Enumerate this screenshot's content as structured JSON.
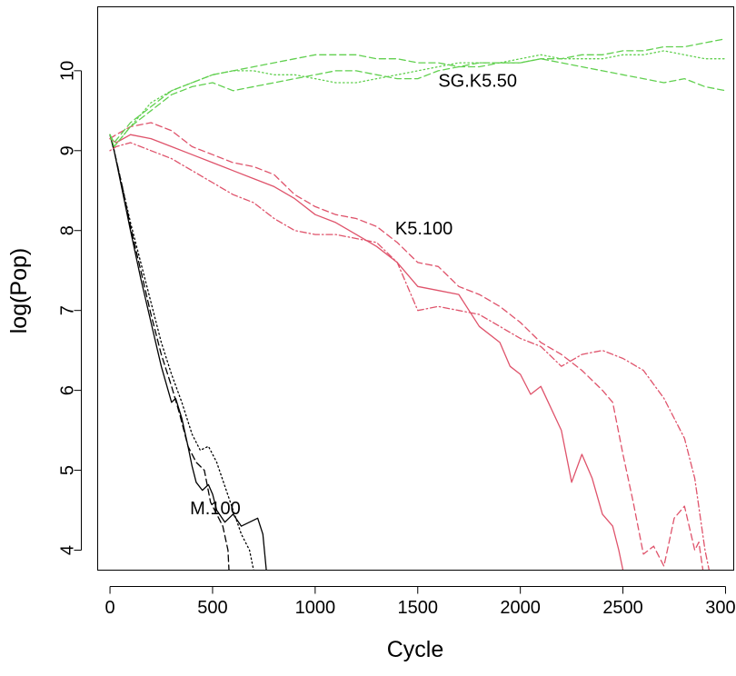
{
  "chart_data": {
    "type": "line",
    "title": "",
    "xlabel": "Cycle",
    "ylabel": "log(Pop)",
    "xlim": [
      -60,
      3040
    ],
    "ylim": [
      3.75,
      10.8
    ],
    "x_ticks": [
      0,
      500,
      1000,
      1500,
      2000,
      2500,
      3000
    ],
    "x_tick_labels": [
      "0",
      "500",
      "1000",
      "1500",
      "2000",
      "2500",
      "3000"
    ],
    "y_ticks": [
      4,
      5,
      6,
      7,
      8,
      9,
      10
    ],
    "y_tick_labels": [
      "4",
      "5",
      "6",
      "7",
      "8",
      "9",
      "10"
    ],
    "grid": false,
    "legend": "none",
    "colors": {
      "M.100": "#000000",
      "K5.100": "#df536b",
      "SG.K5.50": "#61d04f"
    },
    "annotations": [
      {
        "text": "SG.K5.50",
        "x": 1600,
        "y": 9.8
      },
      {
        "text": "K5.100",
        "x": 1390,
        "y": 7.95
      },
      {
        "text": "M.100",
        "x": 390,
        "y": 4.45
      }
    ],
    "series": [
      {
        "group": "M.100",
        "dash": "solid",
        "x": [
          0,
          20,
          60,
          100,
          150,
          200,
          250,
          300,
          320,
          350,
          380,
          400,
          420,
          450,
          480,
          500,
          520,
          560,
          600,
          640,
          680,
          720,
          745,
          762
        ],
        "y": [
          9.2,
          9.0,
          8.5,
          8.0,
          7.4,
          6.85,
          6.3,
          5.85,
          5.9,
          5.65,
          5.3,
          5.05,
          4.85,
          4.75,
          4.82,
          4.7,
          4.5,
          4.35,
          4.45,
          4.3,
          4.35,
          4.4,
          4.2,
          3.75
        ]
      },
      {
        "group": "M.100",
        "dash": "dashed",
        "x": [
          0,
          20,
          60,
          100,
          150,
          200,
          250,
          300,
          340,
          380,
          420,
          460,
          490,
          520,
          550,
          575,
          580
        ],
        "y": [
          9.2,
          9.0,
          8.55,
          8.05,
          7.5,
          6.95,
          6.45,
          6.05,
          5.7,
          5.3,
          5.1,
          5.0,
          4.6,
          4.45,
          4.3,
          4.0,
          3.75
        ]
      },
      {
        "group": "M.100",
        "dash": "dotted",
        "x": [
          0,
          20,
          60,
          100,
          150,
          200,
          250,
          300,
          350,
          400,
          440,
          480,
          520,
          560,
          600,
          640,
          680,
          700
        ],
        "y": [
          9.2,
          9.0,
          8.55,
          8.1,
          7.6,
          7.1,
          6.6,
          6.2,
          5.85,
          5.45,
          5.25,
          5.3,
          5.1,
          4.8,
          4.5,
          4.2,
          4.0,
          3.75
        ]
      },
      {
        "group": "K5.100",
        "dash": "solid",
        "x": [
          0,
          30,
          100,
          200,
          300,
          400,
          500,
          600,
          700,
          800,
          900,
          1000,
          1100,
          1200,
          1300,
          1400,
          1500,
          1600,
          1700,
          1800,
          1900,
          1950,
          2000,
          2050,
          2100,
          2200,
          2250,
          2300,
          2350,
          2400,
          2450,
          2480,
          2500
        ],
        "y": [
          9.15,
          9.1,
          9.2,
          9.15,
          9.05,
          8.95,
          8.85,
          8.75,
          8.65,
          8.55,
          8.4,
          8.2,
          8.1,
          7.95,
          7.8,
          7.6,
          7.3,
          7.25,
          7.2,
          6.8,
          6.6,
          6.3,
          6.2,
          5.95,
          6.05,
          5.5,
          4.85,
          5.2,
          4.9,
          4.45,
          4.3,
          4.0,
          3.75
        ]
      },
      {
        "group": "K5.100",
        "dash": "dashed",
        "x": [
          0,
          30,
          100,
          200,
          300,
          400,
          500,
          600,
          700,
          800,
          900,
          1000,
          1100,
          1200,
          1300,
          1400,
          1500,
          1600,
          1700,
          1800,
          1900,
          2000,
          2100,
          2200,
          2300,
          2400,
          2450,
          2500,
          2550,
          2600,
          2650,
          2700,
          2750,
          2800,
          2850,
          2870,
          2890
        ],
        "y": [
          9.15,
          9.2,
          9.3,
          9.35,
          9.25,
          9.05,
          8.95,
          8.85,
          8.8,
          8.7,
          8.45,
          8.3,
          8.2,
          8.15,
          8.05,
          7.85,
          7.6,
          7.55,
          7.3,
          7.2,
          7.05,
          6.85,
          6.6,
          6.45,
          6.25,
          6.0,
          5.85,
          5.2,
          4.6,
          3.95,
          4.05,
          3.8,
          4.4,
          4.55,
          4.0,
          4.1,
          3.75
        ]
      },
      {
        "group": "K5.100",
        "dash": "dotdash",
        "x": [
          0,
          30,
          100,
          200,
          300,
          400,
          500,
          600,
          700,
          800,
          900,
          1000,
          1100,
          1200,
          1300,
          1400,
          1450,
          1500,
          1600,
          1700,
          1800,
          1900,
          2000,
          2100,
          2200,
          2300,
          2400,
          2500,
          2600,
          2700,
          2800,
          2850,
          2900,
          2920
        ],
        "y": [
          9.0,
          9.05,
          9.1,
          9.0,
          8.9,
          8.75,
          8.6,
          8.45,
          8.35,
          8.15,
          8.0,
          7.95,
          7.95,
          7.9,
          7.85,
          7.6,
          7.3,
          7.0,
          7.05,
          7.0,
          6.95,
          6.8,
          6.65,
          6.55,
          6.3,
          6.45,
          6.5,
          6.4,
          6.25,
          5.9,
          5.4,
          4.9,
          4.0,
          3.75
        ]
      },
      {
        "group": "SG.K5.50",
        "dash": "dashed",
        "x": [
          0,
          20,
          100,
          200,
          300,
          400,
          500,
          600,
          700,
          800,
          900,
          1000,
          1100,
          1200,
          1300,
          1400,
          1500,
          1600,
          1700,
          1800,
          1900,
          2000,
          2100,
          2200,
          2300,
          2400,
          2500,
          2600,
          2700,
          2800,
          2900,
          3000
        ],
        "y": [
          9.2,
          9.1,
          9.35,
          9.55,
          9.75,
          9.85,
          9.95,
          10.0,
          10.05,
          10.1,
          10.15,
          10.2,
          10.2,
          10.2,
          10.15,
          10.15,
          10.1,
          10.1,
          10.05,
          10.05,
          10.1,
          10.1,
          10.15,
          10.15,
          10.2,
          10.2,
          10.25,
          10.25,
          10.3,
          10.3,
          10.35,
          10.4
        ]
      },
      {
        "group": "SG.K5.50",
        "dash": "dashed",
        "x": [
          0,
          20,
          100,
          200,
          300,
          400,
          500,
          600,
          700,
          800,
          900,
          1000,
          1100,
          1200,
          1300,
          1400,
          1500,
          1600,
          1700,
          1800,
          1900,
          2000,
          2100,
          2200,
          2300,
          2400,
          2500,
          2600,
          2700,
          2800,
          2900,
          3000
        ],
        "y": [
          9.2,
          9.05,
          9.3,
          9.5,
          9.7,
          9.8,
          9.85,
          9.75,
          9.8,
          9.85,
          9.9,
          9.95,
          10.0,
          10.0,
          9.95,
          9.9,
          9.9,
          10.0,
          10.05,
          10.1,
          10.1,
          10.1,
          10.15,
          10.1,
          10.05,
          10.0,
          9.95,
          9.9,
          9.85,
          9.9,
          9.8,
          9.75
        ]
      },
      {
        "group": "SG.K5.50",
        "dash": "dotted",
        "x": [
          0,
          20,
          100,
          200,
          300,
          400,
          500,
          600,
          700,
          800,
          900,
          1000,
          1100,
          1200,
          1300,
          1400,
          1500,
          1600,
          1700,
          1800,
          1900,
          2000,
          2100,
          2200,
          2300,
          2400,
          2500,
          2600,
          2700,
          2800,
          2900,
          3000
        ],
        "y": [
          9.2,
          9.05,
          9.3,
          9.6,
          9.75,
          9.85,
          9.95,
          10.0,
          10.0,
          9.95,
          9.95,
          9.9,
          9.85,
          9.85,
          9.9,
          9.95,
          10.0,
          10.05,
          10.1,
          10.1,
          10.1,
          10.15,
          10.2,
          10.15,
          10.15,
          10.15,
          10.2,
          10.2,
          10.25,
          10.2,
          10.15,
          10.15
        ]
      }
    ]
  }
}
